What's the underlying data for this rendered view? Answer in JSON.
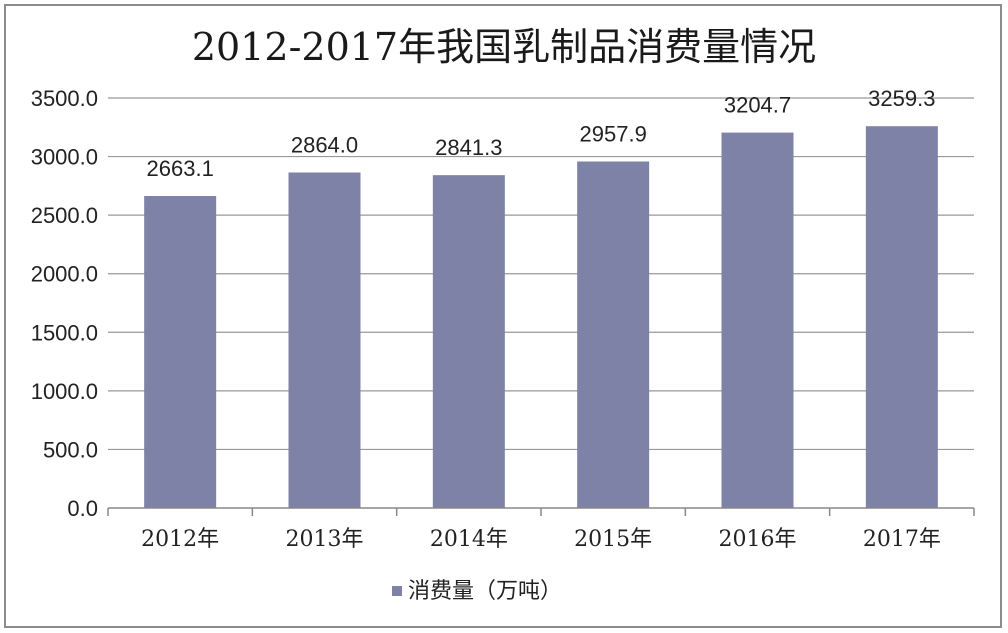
{
  "chart_data": {
    "type": "bar",
    "title": "2012-2017年我国乳制品消费量情况",
    "categories": [
      "2012年",
      "2013年",
      "2014年",
      "2015年",
      "2016年",
      "2017年"
    ],
    "series": [
      {
        "name": "消费量（万吨）",
        "values": [
          2663.1,
          2864.0,
          2841.3,
          2957.9,
          3204.7,
          3259.3
        ],
        "labels": [
          "2663.1",
          "2864.0",
          "2841.3",
          "2957.9",
          "3204.7",
          "3259.3"
        ]
      }
    ],
    "ylim": [
      0,
      3500
    ],
    "yticks": [
      "0.0",
      "500.0",
      "1000.0",
      "1500.0",
      "2000.0",
      "2500.0",
      "3000.0",
      "3500.0"
    ],
    "grid": true,
    "legend": "bottom",
    "colors": {
      "bar": "#7e82a6",
      "grid": "#999999",
      "axis": "#888888"
    }
  }
}
